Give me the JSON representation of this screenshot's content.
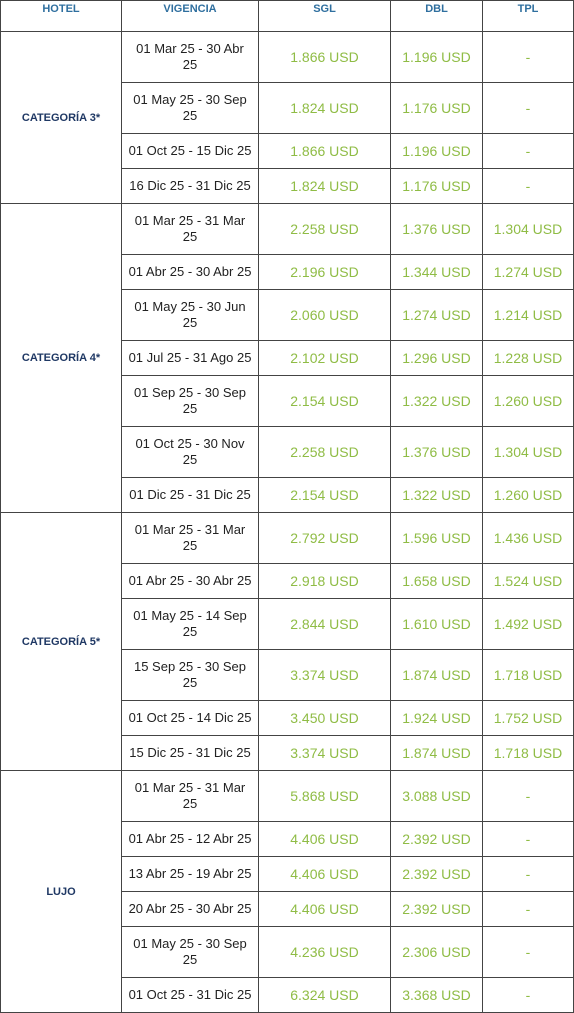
{
  "table": {
    "header": [
      "HOTEL",
      "VIGENCIA",
      "SGL",
      "DBL",
      "TPL"
    ],
    "groups": [
      {
        "hotel": "CATEGORÍA 3*",
        "rows": [
          [
            "01 Mar 25 - 30 Abr 25",
            "1.866 USD",
            "1.196 USD",
            "-"
          ],
          [
            "01 May 25 - 30 Sep 25",
            "1.824 USD",
            "1.176 USD",
            "-"
          ],
          [
            "01 Oct 25 - 15 Dic 25",
            "1.866 USD",
            "1.196 USD",
            "-"
          ],
          [
            "16 Dic 25 - 31 Dic 25",
            "1.824 USD",
            "1.176 USD",
            "-"
          ]
        ]
      },
      {
        "hotel": "CATEGORÍA 4*",
        "rows": [
          [
            "01 Mar 25 - 31 Mar 25",
            "2.258 USD",
            "1.376 USD",
            "1.304 USD"
          ],
          [
            "01 Abr 25 - 30 Abr 25",
            "2.196 USD",
            "1.344 USD",
            "1.274 USD"
          ],
          [
            "01 May 25 - 30 Jun 25",
            "2.060 USD",
            "1.274 USD",
            "1.214 USD"
          ],
          [
            "01 Jul 25 - 31 Ago 25",
            "2.102 USD",
            "1.296 USD",
            "1.228 USD"
          ],
          [
            "01 Sep 25 - 30 Sep 25",
            "2.154 USD",
            "1.322 USD",
            "1.260 USD"
          ],
          [
            "01 Oct 25 - 30 Nov 25",
            "2.258 USD",
            "1.376 USD",
            "1.304 USD"
          ],
          [
            "01 Dic 25 - 31 Dic 25",
            "2.154 USD",
            "1.322 USD",
            "1.260 USD"
          ]
        ]
      },
      {
        "hotel": "CATEGORÍA 5*",
        "rows": [
          [
            "01 Mar 25 - 31 Mar 25",
            "2.792 USD",
            "1.596 USD",
            "1.436 USD"
          ],
          [
            "01 Abr 25 - 30 Abr 25",
            "2.918 USD",
            "1.658 USD",
            "1.524 USD"
          ],
          [
            "01 May 25 - 14 Sep 25",
            "2.844 USD",
            "1.610 USD",
            "1.492 USD"
          ],
          [
            "15 Sep 25 - 30 Sep 25",
            "3.374 USD",
            "1.874 USD",
            "1.718 USD"
          ],
          [
            "01 Oct 25 - 14 Dic 25",
            "3.450 USD",
            "1.924 USD",
            "1.752 USD"
          ],
          [
            "15 Dic 25 - 31 Dic 25",
            "3.374 USD",
            "1.874 USD",
            "1.718 USD"
          ]
        ]
      },
      {
        "hotel": "LUJO",
        "rows": [
          [
            "01 Mar 25 - 31 Mar 25",
            "5.868 USD",
            "3.088 USD",
            "-"
          ],
          [
            "01 Abr 25 - 12 Abr 25",
            "4.406 USD",
            "2.392 USD",
            "-"
          ],
          [
            "13 Abr 25 - 19 Abr 25",
            "4.406 USD",
            "2.392 USD",
            "-"
          ],
          [
            "20 Abr 25 - 30 Abr 25",
            "4.406 USD",
            "2.392 USD",
            "-"
          ],
          [
            "01 May 25 - 30 Sep 25",
            "4.236 USD",
            "2.306 USD",
            "-"
          ],
          [
            "01 Oct 25 - 31 Dic 25",
            "6.324 USD",
            "3.368 USD",
            "-"
          ]
        ]
      }
    ]
  }
}
